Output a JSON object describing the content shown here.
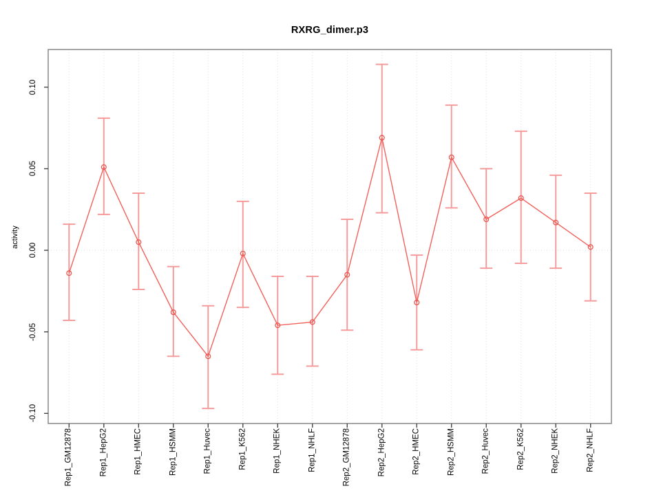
{
  "chart_data": {
    "type": "line",
    "title": "RXRG_dimer.p3",
    "xlabel": "",
    "ylabel": "activity",
    "categories": [
      "Rep1_GM12878",
      "Rep1_HepG2",
      "Rep1_HMEC",
      "Rep1_HSMM",
      "Rep1_Huvec",
      "Rep1_K562",
      "Rep1_NHEK",
      "Rep1_NHLF",
      "Rep2_GM12878",
      "Rep2_HepG2",
      "Rep2_HMEC",
      "Rep2_HSMM",
      "Rep2_Huvec",
      "Rep2_K562",
      "Rep2_NHEK",
      "Rep2_NHLF"
    ],
    "series": [
      {
        "name": "activity",
        "values": [
          -0.014,
          0.051,
          0.005,
          -0.038,
          -0.065,
          -0.002,
          -0.046,
          -0.044,
          -0.015,
          0.069,
          -0.032,
          0.057,
          0.019,
          0.032,
          0.017,
          0.002
        ],
        "error_low": [
          -0.043,
          0.022,
          -0.024,
          -0.065,
          -0.097,
          -0.035,
          -0.076,
          -0.071,
          -0.049,
          0.023,
          -0.061,
          0.026,
          -0.011,
          -0.008,
          -0.011,
          -0.031
        ],
        "error_high": [
          0.016,
          0.081,
          0.035,
          -0.01,
          -0.034,
          0.03,
          -0.016,
          -0.016,
          0.019,
          0.114,
          -0.003,
          0.089,
          0.05,
          0.073,
          0.046,
          0.035
        ]
      }
    ],
    "yticks": {
      "values": [
        0.1,
        0.05,
        0.0,
        -0.05,
        -0.1
      ],
      "labels": [
        "0.10",
        "0.05",
        "0.00",
        "-0.05",
        "-0.10"
      ]
    },
    "ylim": [
      -0.1062,
      0.1231
    ],
    "xlim": [
      0.4,
      16.6
    ],
    "grid": {
      "vertical_per_category": true,
      "horizontal_zero_line": true,
      "style": "dotted"
    },
    "legend": "none",
    "marker": "open-circle",
    "colors": {
      "line": "#f2605a",
      "marker": "#e9564f",
      "error_bar": "#f59b9b",
      "grid": "#dedede",
      "frame": "#909090",
      "tick": "#444444",
      "text": "#000000",
      "background": "#ffffff"
    }
  }
}
